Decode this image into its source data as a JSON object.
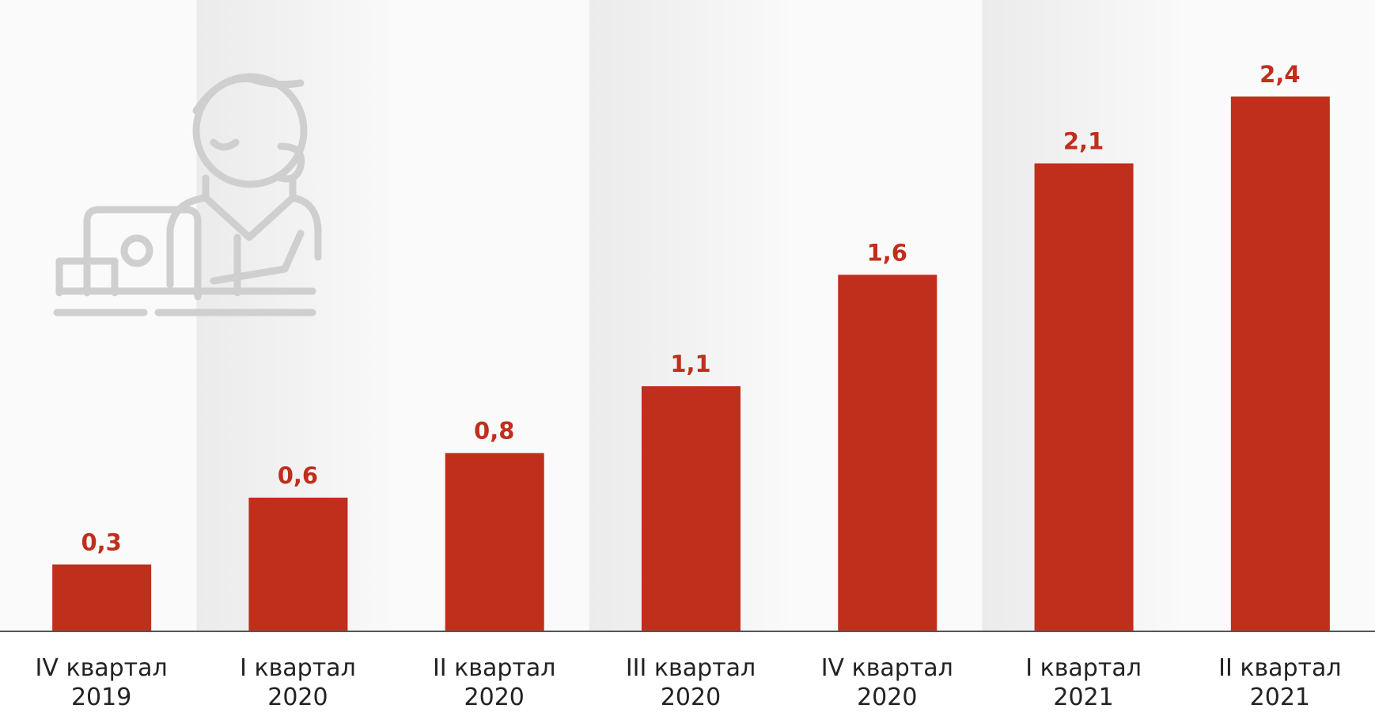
{
  "chart_data": {
    "type": "bar",
    "categories": [
      "IV квартал\n2019",
      "I квартал\n2020",
      "II квартал\n2020",
      "III квартал\n2020",
      "IV квартал\n2020",
      "I квартал\n2021",
      "II квартал\n2021"
    ],
    "values": [
      0.3,
      0.6,
      0.8,
      1.1,
      1.6,
      2.1,
      2.4
    ],
    "value_labels": [
      "0,3",
      "0,6",
      "0,8",
      "1,1",
      "1,6",
      "2,1",
      "2,4"
    ],
    "color": "#bf2f1c"
  }
}
